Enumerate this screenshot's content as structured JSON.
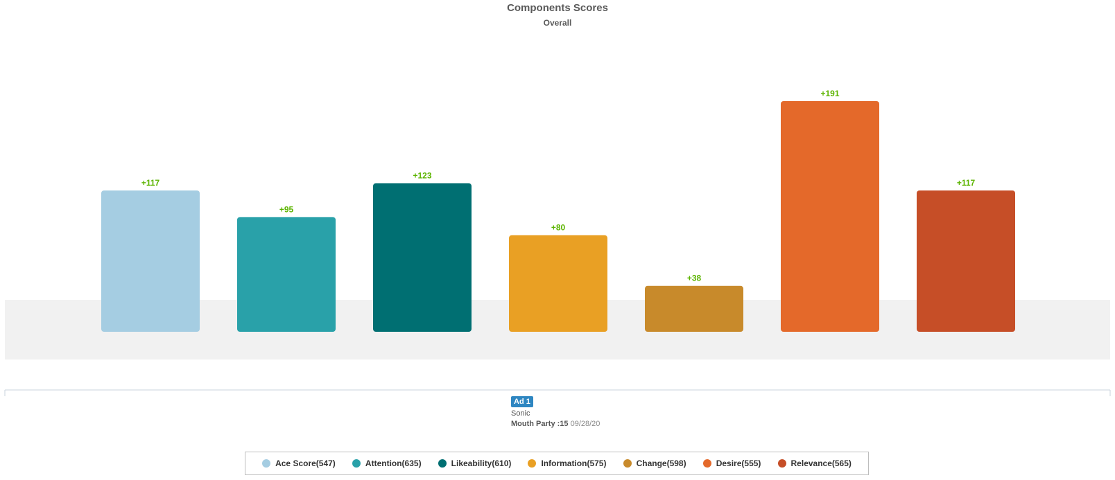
{
  "chart_data": {
    "type": "bar",
    "title": "Components Scores",
    "subtitle": "Overall",
    "categories": [
      "Ace Score",
      "Attention",
      "Likeability",
      "Information",
      "Change",
      "Desire",
      "Relevance"
    ],
    "values": [
      117,
      95,
      123,
      80,
      38,
      191,
      117
    ],
    "value_labels": [
      "+117",
      "+95",
      "+123",
      "+80",
      "+38",
      "+191",
      "+117"
    ],
    "colors": [
      "#a5cde2",
      "#29a1a9",
      "#006f72",
      "#e9a024",
      "#c88a2b",
      "#e4692a",
      "#c64e27"
    ],
    "label_color": "#5cb400",
    "ylim": [
      0,
      191
    ],
    "grid": false,
    "legend_position": "bottom"
  },
  "ad": {
    "badge": "Ad 1",
    "brand": "Sonic",
    "title": "Mouth Party :15",
    "date": "09/28/20"
  },
  "legend": {
    "items": [
      {
        "label": "Ace Score(547)",
        "color": "#a5cde2"
      },
      {
        "label": "Attention(635)",
        "color": "#29a1a9"
      },
      {
        "label": "Likeability(610)",
        "color": "#006f72"
      },
      {
        "label": "Information(575)",
        "color": "#e9a024"
      },
      {
        "label": "Change(598)",
        "color": "#c88a2b"
      },
      {
        "label": "Desire(555)",
        "color": "#e4692a"
      },
      {
        "label": "Relevance(565)",
        "color": "#c64e27"
      }
    ]
  }
}
